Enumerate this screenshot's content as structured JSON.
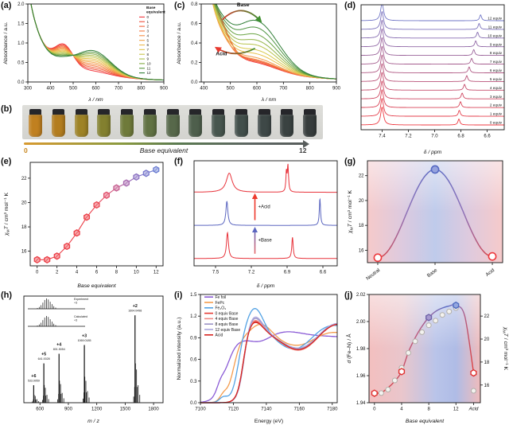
{
  "figure": {
    "panel_labels": {
      "a": "(a)",
      "b": "(b)",
      "c": "(c)",
      "d": "(d)",
      "e": "(e)",
      "f": "(f)",
      "g": "(g)",
      "h": "(h)",
      "i": "(i)",
      "j": "(j)"
    }
  },
  "photo_panel": {
    "vial_colors": [
      "#c08020",
      "#b37d1f",
      "#9e8326",
      "#83802f",
      "#6f7a3a",
      "#617243",
      "#57684a",
      "#4e5f4c",
      "#47564e",
      "#424f4b",
      "#3e4847",
      "#3a4241",
      "#373d3c"
    ],
    "arrow": {
      "start": "0",
      "label": "Base equivalent",
      "end": "12"
    },
    "arrow_gradient": [
      "#d89a30",
      "#8a9a40",
      "#5a7a50",
      "#5d6662",
      "#585d5c"
    ]
  },
  "chart_data": [
    {
      "panel": "a",
      "type": "line",
      "xlabel": "λ / nm",
      "ylabel": "Absorbance / a.u.",
      "xlim": [
        300,
        900
      ],
      "ylim": [
        0,
        2
      ],
      "xticks": [
        300,
        400,
        500,
        600,
        700,
        800,
        900
      ],
      "yticks": [
        "0.0",
        "0.5",
        "1.0",
        "1.5",
        "2.0"
      ],
      "legend_title": [
        "Base",
        "equivalent"
      ],
      "baseline": {
        "a1": 1.9,
        "t1": 55,
        "a2": 0.55,
        "t2": 250,
        "x0": 300
      },
      "band1": {
        "center": 460,
        "width": 40
      },
      "band2": {
        "center": 588,
        "width": 78
      },
      "series": [
        {
          "label": "0",
          "color": "#f2383f",
          "a1": 0.55,
          "a2": 0.1
        },
        {
          "label": "1",
          "color": "#ef4f3c",
          "a1": 0.513,
          "a2": 0.143
        },
        {
          "label": "2",
          "color": "#f2653e",
          "a1": 0.475,
          "a2": 0.187
        },
        {
          "label": "3",
          "color": "#f47a42",
          "a1": 0.438,
          "a2": 0.23
        },
        {
          "label": "4",
          "color": "#f48f45",
          "a1": 0.4,
          "a2": 0.273
        },
        {
          "label": "5",
          "color": "#f1a449",
          "a1": 0.363,
          "a2": 0.317
        },
        {
          "label": "6",
          "color": "#ecb84c",
          "a1": 0.325,
          "a2": 0.36
        },
        {
          "label": "7",
          "color": "#e2c44d",
          "a1": 0.288,
          "a2": 0.403
        },
        {
          "label": "8",
          "color": "#c9c64b",
          "a1": 0.25,
          "a2": 0.447
        },
        {
          "label": "9",
          "color": "#a8bc49",
          "a1": 0.213,
          "a2": 0.49
        },
        {
          "label": "10",
          "color": "#83ab45",
          "a1": 0.175,
          "a2": 0.533
        },
        {
          "label": "11",
          "color": "#59953f",
          "a1": 0.138,
          "a2": 0.577
        },
        {
          "label": "12",
          "color": "#2f7d35",
          "a1": 0.1,
          "a2": 0.62
        }
      ]
    },
    {
      "panel": "c",
      "type": "line",
      "xlabel": "λ / nm",
      "ylabel": "Absorbance / a.u.",
      "xlim": [
        390,
        900
      ],
      "ylim": [
        0,
        0.8
      ],
      "xticks": [
        400,
        500,
        600,
        700,
        800,
        900
      ],
      "yticks": [
        "0.0",
        "0.2",
        "0.4",
        "0.6",
        "0.8"
      ],
      "baseline": {
        "a1": 1.5,
        "t1": 42,
        "a2": 0.22,
        "t2": 260,
        "x0": 390
      },
      "band1": {
        "center": 462,
        "width": 38
      },
      "band2": {
        "center": 598,
        "width": 85
      },
      "annotations": [
        {
          "text": "Base",
          "color": "#3f8f2f"
        },
        {
          "text": "Acid",
          "color": "#ed3a2e"
        }
      ],
      "series": [
        {
          "label": "",
          "color": "#f2383f",
          "a1": 0.215,
          "a2": 0.09
        },
        {
          "label": "",
          "color": "#ef4f3c",
          "a1": 0.195,
          "a2": 0.1
        },
        {
          "label": "",
          "color": "#f0593a",
          "a1": 0.175,
          "a2": 0.11
        },
        {
          "label": "",
          "color": "#f37040",
          "a1": 0.12,
          "a2": 0.1
        },
        {
          "label": "",
          "color": "#f48342",
          "a1": 0.1,
          "a2": 0.12
        },
        {
          "label": "",
          "color": "#f29a46",
          "a1": 0.085,
          "a2": 0.14
        },
        {
          "label": "",
          "color": "#e9c24c",
          "a1": 0.09,
          "a2": 0.18
        },
        {
          "label": "",
          "color": "#d8c94b",
          "a1": 0.1,
          "a2": 0.22
        },
        {
          "label": "",
          "color": "#b8c34a",
          "a1": 0.11,
          "a2": 0.27
        },
        {
          "label": "",
          "color": "#93b447",
          "a1": 0.12,
          "a2": 0.32
        },
        {
          "label": "",
          "color": "#68a242",
          "a1": 0.13,
          "a2": 0.38
        },
        {
          "label": "",
          "color": "#4e9440",
          "a1": 0.135,
          "a2": 0.45
        },
        {
          "label": "",
          "color": "#2f7d35",
          "a1": 0.14,
          "a2": 0.52
        }
      ]
    },
    {
      "panel": "d",
      "type": "nmr-stack",
      "xlabel": "δ / ppm",
      "xlim": [
        7.56,
        6.47
      ],
      "xticks": [
        "7.4",
        "7.2",
        "7.0",
        "6.8",
        "6.6"
      ],
      "main_peak": 7.4,
      "color_start": "#ee3a41",
      "color_end": "#7277c7",
      "traces": [
        {
          "label": "0 equiv",
          "shift": 6.815
        },
        {
          "label": "1 equiv",
          "shift": 6.812
        },
        {
          "label": "2 equiv",
          "shift": 6.803
        },
        {
          "label": "3 equiv",
          "shift": 6.79
        },
        {
          "label": "4 equiv",
          "shift": 6.772
        },
        {
          "label": "5 equiv",
          "shift": 6.755
        },
        {
          "label": "6 equiv",
          "shift": 6.737
        },
        {
          "label": "7 equiv",
          "shift": 6.718
        },
        {
          "label": "8 equiv",
          "shift": 6.702
        },
        {
          "label": "9 equiv",
          "shift": 6.687
        },
        {
          "label": "10 equiv",
          "shift": 6.673
        },
        {
          "label": "11 equiv",
          "shift": 6.661
        },
        {
          "label": "12 equiv",
          "shift": 6.65
        }
      ]
    },
    {
      "panel": "e",
      "type": "scatter",
      "xlabel": "Base equivalent",
      "ylabel": "χMT / cm³ mol⁻¹ K",
      "xlim": [
        -0.7,
        12.7
      ],
      "ylim": [
        14.8,
        23.3
      ],
      "xticks": [
        0,
        2,
        4,
        6,
        8,
        10,
        12
      ],
      "yticks": [
        16,
        18,
        20,
        22
      ],
      "x": [
        0,
        1,
        2,
        3,
        4,
        5,
        6,
        7,
        8,
        9,
        10,
        11,
        12
      ],
      "y": [
        15.3,
        15.3,
        15.6,
        16.4,
        17.5,
        18.8,
        19.8,
        20.6,
        21.2,
        21.6,
        22.1,
        22.4,
        22.7
      ],
      "marker_colors": [
        "#ec3f47",
        "#ec3f47",
        "#ec3f47",
        "#ec3f47",
        "#ec3f47",
        "#ec3f47",
        "#ea4550",
        "#e14e6a",
        "#c55c8e",
        "#a768ae",
        "#8c72c2",
        "#7878cc",
        "#6b7dd2"
      ]
    },
    {
      "panel": "f",
      "type": "nmr-3",
      "xlabel": "δ / ppm",
      "xlim": [
        7.68,
        6.48
      ],
      "xticks": [
        "7.5",
        "7.2",
        "6.9",
        "6.6"
      ],
      "annotations": [
        {
          "text": "+Base",
          "color": "#5b66c0"
        },
        {
          "text": "+Acid",
          "color": "#ed3a2e"
        }
      ],
      "traces": [
        {
          "color": "#e8333b",
          "peaks": [
            [
              7.4,
              0.01,
              0.95
            ],
            [
              6.855,
              0.007,
              0.78
            ]
          ]
        },
        {
          "color": "#5b66c0",
          "peaks": [
            [
              7.405,
              0.01,
              0.88
            ],
            [
              6.625,
              0.006,
              0.98
            ]
          ]
        },
        {
          "color": "#e8333b",
          "peaks": [
            [
              7.385,
              0.03,
              0.7
            ],
            [
              6.893,
              0.006,
              0.95
            ],
            [
              6.906,
              0.005,
              0.7
            ]
          ]
        }
      ]
    },
    {
      "panel": "g",
      "type": "category-curve",
      "ylabel": "χMT / cm³ mol⁻¹ K",
      "categories": [
        "Neutral",
        "Base",
        "Acid"
      ],
      "values": [
        15.4,
        22.5,
        15.5
      ],
      "ylim": [
        15,
        23.2
      ],
      "yticks": [
        16,
        18,
        20,
        22
      ],
      "marker_styles": [
        {
          "fill": "#ffffff",
          "stroke": "#ed3a3e"
        },
        {
          "fill": "#96a3de",
          "stroke": "#5468c2"
        },
        {
          "fill": "#ffffff",
          "stroke": "#ed3a3e"
        }
      ],
      "line_gradient": [
        "#e0403c",
        "#8f72b8",
        "#5b6fc7",
        "#8f72b8",
        "#e0403c"
      ],
      "bg_gradient": [
        "#f6caca",
        "#decade",
        "#bfcbeb",
        "#decade",
        "#f6caca"
      ]
    },
    {
      "panel": "h",
      "type": "mass-spec",
      "xlabel": "m / z",
      "xlim": [
        430,
        1900
      ],
      "xticks": [
        600,
        900,
        1200,
        1500,
        1800
      ],
      "peaks": [
        {
          "mz": 533.9959,
          "charge": "+6",
          "mass": "533.9959",
          "h": 0.2
        },
        {
          "mz": 641.0028,
          "charge": "+5",
          "mass": "641.0028",
          "h": 0.45
        },
        {
          "mz": 801.5054,
          "charge": "+4",
          "mass": "801.5054",
          "h": 0.56
        },
        {
          "mz": 1069.0185,
          "charge": "+3",
          "mass": "1069.0185",
          "h": 0.66
        },
        {
          "mz": 1604.0498,
          "charge": "+2",
          "mass": "1604.0498",
          "h": 1.0
        }
      ],
      "satellites": [
        [
          -14,
          0.07
        ],
        [
          -4,
          0.18
        ],
        [
          0,
          1
        ],
        [
          5,
          0.45
        ],
        [
          16,
          0.38
        ],
        [
          21,
          0.18
        ],
        [
          33,
          0.2
        ],
        [
          50,
          0.09
        ]
      ],
      "inset": {
        "labels": [
          [
            "Experiment",
            "+3"
          ],
          [
            "Calculated",
            "+3"
          ]
        ],
        "pattern": [
          0.08,
          0.18,
          0.35,
          0.6,
          0.85,
          1.0,
          0.9,
          0.68,
          0.45,
          0.25,
          0.12
        ]
      }
    },
    {
      "panel": "i",
      "type": "xanes",
      "xlabel": "Energy (eV)",
      "ylabel": "Normalized intensity (a.u.)",
      "xlim": [
        7100,
        7183
      ],
      "ylim": [
        0,
        1.5
      ],
      "xticks": [
        7100,
        7120,
        7140,
        7160,
        7180
      ],
      "yticks": [
        "0.0",
        "0.3",
        "0.6",
        "0.9",
        "1.2",
        "1.5"
      ],
      "series": [
        {
          "name": "Fe foil",
          "color": "#8b5cd6",
          "e0": 7115.5,
          "ew": 3.2,
          "h": 0.9,
          "comps": [
            [
              7112,
              2.2,
              0.1
            ],
            [
              7136,
              6,
              -0.07
            ],
            [
              7152,
              10,
              0.08
            ],
            [
              7174,
              12,
              0.02
            ]
          ]
        },
        {
          "name": "FePc",
          "color": "#f49c4e",
          "e0": 7120,
          "ew": 2.4,
          "h": 0.93,
          "comps": [
            [
              7114,
              2.2,
              0.08
            ],
            [
              7137,
              6,
              0.17
            ],
            [
              7159,
              10,
              -0.14
            ],
            [
              7178,
              9,
              0.06
            ]
          ]
        },
        {
          "name": "Fe₂O₃",
          "color": "#53a2e4",
          "e0": 7123,
          "ew": 2.2,
          "h": 1.0,
          "comps": [
            [
              7114,
              2.5,
              0.07
            ],
            [
              7133,
              5,
              0.33
            ],
            [
              7157,
              10,
              -0.26
            ],
            [
              7178,
              9,
              0.09
            ]
          ]
        },
        {
          "name": "0 equiv Base",
          "color": "#e43b35",
          "e0": 7126.0,
          "ew": 1.9,
          "h": 1.0,
          "comps": [
            [
              7132.5,
              5,
              0.16
            ],
            [
              7160,
              11,
              -0.27
            ],
            [
              7181,
              9,
              0.12
            ]
          ]
        },
        {
          "name": "4 equiv Base",
          "color": "#f08a84",
          "e0": 7126.2,
          "ew": 1.9,
          "h": 1.0,
          "comps": [
            [
              7132.5,
              5,
              0.18
            ],
            [
              7160,
              11,
              -0.28
            ],
            [
              7181,
              9,
              0.12
            ]
          ]
        },
        {
          "name": "8 equiv Base",
          "color": "#9b93c6",
          "e0": 7126.4,
          "ew": 1.9,
          "h": 1.0,
          "comps": [
            [
              7132.5,
              5,
              0.21
            ],
            [
              7160,
              11,
              -0.26
            ],
            [
              7181,
              9,
              0.13
            ]
          ]
        },
        {
          "name": "12 equiv Base",
          "color": "#a9a6dc",
          "e0": 7126.5,
          "ew": 1.9,
          "h": 1.0,
          "comps": [
            [
              7132.5,
              5,
              0.23
            ],
            [
              7160,
              11,
              -0.25
            ],
            [
              7181,
              9,
              0.13
            ]
          ]
        },
        {
          "name": "Acid",
          "color": "#d6241f",
          "e0": 7126.0,
          "ew": 1.9,
          "h": 1.0,
          "comps": [
            [
              7132.5,
              5,
              0.15
            ],
            [
              7160,
              11,
              -0.27
            ],
            [
              7181,
              9,
              0.12
            ]
          ]
        }
      ]
    },
    {
      "panel": "j",
      "type": "dual-axis",
      "xlabel": "Base equivalent",
      "ylabel_left": "d (Fe–N) / Å",
      "ylabel_right": "χMT / cm³ mol⁻¹ K",
      "xlim": [
        -0.8,
        15.6
      ],
      "ylim_left": [
        1.94,
        2.02
      ],
      "ylim_right": [
        14.46,
        23.88
      ],
      "xticks": [
        0,
        4,
        8,
        12
      ],
      "acid_x": 14.6,
      "acid_label": "Acid",
      "acid_color": "#e8332f",
      "yticks_left": [
        "1.94",
        "1.96",
        "1.98",
        "2.00",
        "2.02"
      ],
      "yticks_right": [
        16,
        18,
        20,
        22
      ],
      "bond_x": [
        0,
        4,
        8,
        12,
        14.6
      ],
      "bond_y": [
        1.947,
        1.963,
        2.003,
        2.012,
        1.962
      ],
      "bond_markers": [
        {
          "fill": "#ffffff",
          "stroke": "#e0312f"
        },
        {
          "fill": "#ffffff",
          "stroke": "#e0312f"
        },
        {
          "fill": "#a79ad0",
          "stroke": "#6f63a8"
        },
        {
          "fill": "#93a7e0",
          "stroke": "#4f6cc0"
        },
        {
          "fill": "#ffffff",
          "stroke": "#e0312f"
        }
      ],
      "chi_x": [
        0,
        1,
        2,
        3,
        4,
        5,
        6,
        7,
        8,
        9,
        10,
        11,
        12,
        14.6
      ],
      "chi_y": [
        15.3,
        15.3,
        15.6,
        16.4,
        17.5,
        18.8,
        19.8,
        20.6,
        21.2,
        21.6,
        22.1,
        22.4,
        22.7,
        15.5
      ],
      "spline": [
        [
          0,
          1.947
        ],
        [
          1,
          1.9475
        ],
        [
          2,
          1.951
        ],
        [
          3,
          1.956
        ],
        [
          4,
          1.963
        ],
        [
          5,
          1.9775
        ],
        [
          6,
          1.988
        ],
        [
          7,
          1.9965
        ],
        [
          8,
          2.003
        ],
        [
          9,
          2.0075
        ],
        [
          10,
          2.01
        ],
        [
          11,
          2.0115
        ],
        [
          12,
          2.012
        ],
        [
          13.3,
          2.004
        ],
        [
          14.6,
          1.962
        ]
      ],
      "line_gradient": [
        "#e0403c",
        "#b95a80",
        "#5b6fc7",
        "#8f72b8",
        "#e0403c"
      ],
      "bg_gradient": [
        "#f3bfbf",
        "#e9c6cc",
        "#b9c4e9",
        "#afbce6",
        "#f0bcbc"
      ]
    }
  ]
}
